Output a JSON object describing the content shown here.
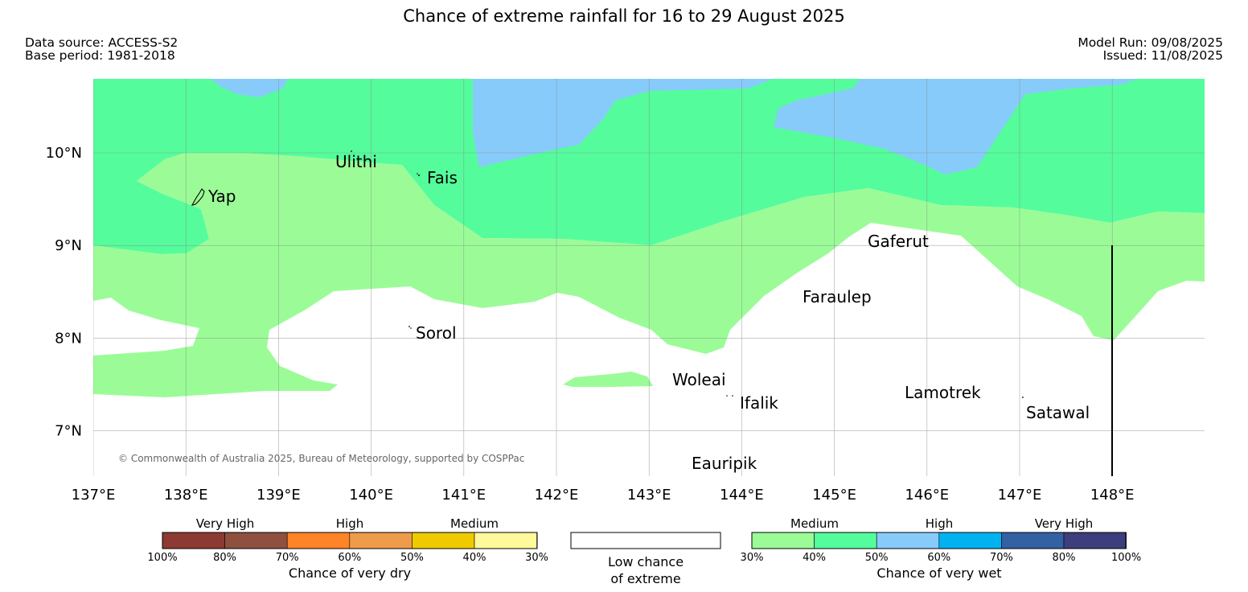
{
  "title": "Chance of extreme rainfall for 16 to 29 August 2025",
  "header": {
    "data_source": "Data source: ACCESS-S2",
    "base_period": "Base period: 1981-2018",
    "model_run": "Model Run: 09/08/2025",
    "issued": "Issued: 11/08/2025"
  },
  "map": {
    "lon_labels": [
      "137°E",
      "138°E",
      "139°E",
      "140°E",
      "141°E",
      "142°E",
      "143°E",
      "144°E",
      "145°E",
      "146°E",
      "147°E",
      "148°E"
    ],
    "lat_labels": [
      "10°N",
      "9°N",
      "8°N",
      "7°N"
    ],
    "places": [
      "Ulithi",
      "Fais",
      "Yap",
      "Gaferut",
      "Faraulep",
      "Sorol",
      "Woleai",
      "Ifalik",
      "Lamotrek",
      "Satawal",
      "Eauripik"
    ],
    "copyright": "© Commonwealth of Australia 2025, Bureau of Meteorology, supported by COSPPac",
    "fill_colors": {
      "medium_wet": "#9bfc97",
      "wet_40_50": "#55fc9c",
      "high_wet": "#87cbfb"
    }
  },
  "legend": {
    "dry": {
      "categories": [
        "Very High",
        "High",
        "Medium"
      ],
      "ticks": [
        "100%",
        "80%",
        "70%",
        "60%",
        "50%",
        "40%",
        "30%"
      ],
      "colors": [
        "#8c3a33",
        "#8f5040",
        "#fe8427",
        "#ef9b4c",
        "#f0ca00",
        "#fef99a"
      ],
      "title": "Chance of very dry"
    },
    "low": {
      "line1": "Low chance",
      "line2": "of extreme"
    },
    "wet": {
      "categories": [
        "Medium",
        "High",
        "Very High"
      ],
      "ticks": [
        "30%",
        "40%",
        "50%",
        "60%",
        "70%",
        "80%",
        "100%"
      ],
      "colors": [
        "#9bfc97",
        "#55fc9c",
        "#87cbfb",
        "#00b3f0",
        "#3361a3",
        "#3d3e7d"
      ],
      "title": "Chance of very wet"
    }
  }
}
